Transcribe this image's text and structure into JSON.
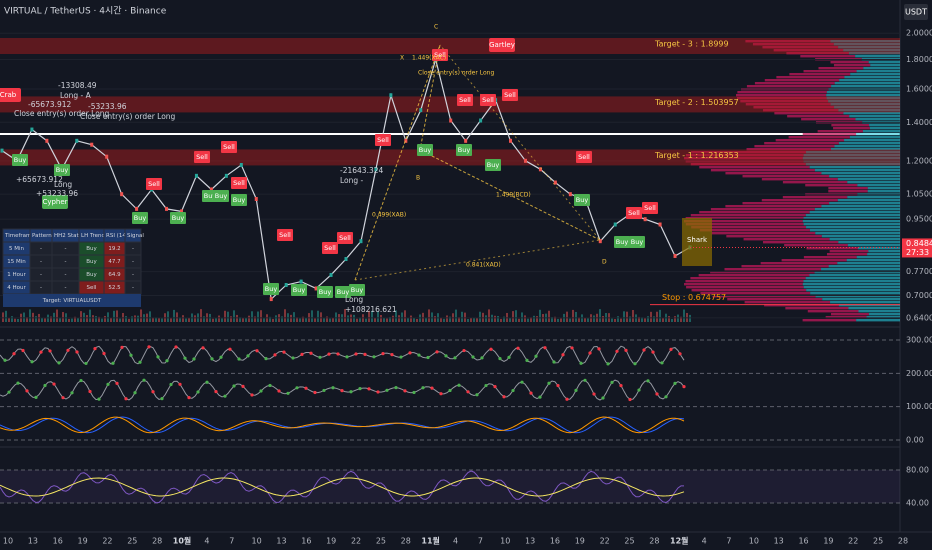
{
  "chart_data": {
    "type": "line",
    "title": "VIRTUAL / TetherUS · 4시간 · Binance",
    "currency_badge": "USDT",
    "log_scale": true,
    "color": "#d1d4dc",
    "ylim": [
      0.6,
      2.1
    ],
    "yticks": [
      {
        "value": 2.0,
        "label": "2.0000"
      },
      {
        "value": 1.8,
        "label": "1.8000"
      },
      {
        "value": 1.6,
        "label": "1.6000"
      },
      {
        "value": 1.4,
        "label": "1.4000"
      },
      {
        "value": 1.2,
        "label": "1.2000"
      },
      {
        "value": 1.05,
        "label": "1.0500"
      },
      {
        "value": 0.95,
        "label": "0.9500"
      },
      {
        "value": 0.77,
        "label": "0.7700"
      },
      {
        "value": 0.7,
        "label": "0.7000"
      },
      {
        "value": 0.64,
        "label": "0.6400"
      }
    ],
    "current_price": {
      "value": 0.8484,
      "label": "0.8484",
      "countdown": "27:33"
    },
    "values": [
      1.25,
      1.2,
      1.36,
      1.3,
      1.16,
      1.3,
      1.28,
      1.22,
      1.05,
      0.99,
      1.07,
      0.99,
      0.98,
      1.13,
      1.07,
      1.13,
      1.18,
      1.03,
      0.69,
      0.73,
      0.74,
      0.72,
      0.76,
      0.81,
      0.87,
      1.16,
      1.56,
      1.3,
      1.47,
      1.8,
      1.41,
      1.3,
      1.41,
      1.53,
      1.3,
      1.2,
      1.16,
      1.1,
      1.05,
      1.03,
      0.87,
      0.93,
      0.97,
      0.95,
      0.93,
      0.82,
      0.8484
    ],
    "x_labels": [
      "10",
      "13",
      "16",
      "19",
      "22",
      "25",
      "28",
      "10월",
      "4",
      "7",
      "10",
      "13",
      "16",
      "19",
      "22",
      "25",
      "28",
      "11월",
      "4",
      "7",
      "10",
      "13",
      "16",
      "19",
      "22",
      "25",
      "28",
      "12월",
      "4",
      "7",
      "10",
      "13",
      "16",
      "19",
      "22",
      "25",
      "28"
    ],
    "levels": [
      {
        "label": "Target - 3 : 1.8999",
        "value": 1.8999
      },
      {
        "label": "Target - 2 : 1.503957",
        "value": 1.503957
      },
      {
        "label": "Target - 1 : 1.216353",
        "value": 1.216353
      },
      {
        "label": "Stop : 0.674757",
        "value": 0.674757
      }
    ],
    "signals": [
      "Sell",
      "Sell",
      "Sell",
      "Sell",
      "Sell",
      "Sell",
      "Sell",
      "Sell",
      "Sell",
      "Sell",
      "Sell",
      "Sell",
      "Sell",
      "Sell",
      "Sell",
      "Buy",
      "Buy",
      "Buy",
      "Buy",
      "Buy",
      "Buy",
      "Buy",
      "Buy",
      "Buy",
      "Buy",
      "Buy",
      "Buy",
      "Buy",
      "Buy",
      "Buy",
      "Buy",
      "Buy",
      "Buy"
    ],
    "patterns": [
      "Crab",
      "Gartley",
      "Shark",
      "Cypher"
    ],
    "annotations": [
      "-13308.49",
      "Long - A",
      "-65673.912",
      "Close entry(s) order Long",
      "-53233.96",
      "Close entry(s) order Long",
      "+65673.912",
      "Long",
      "+53233.96",
      "-21643.324",
      "Long -",
      "Long",
      "+108216.621",
      "X",
      "1.449(XAC)",
      "C",
      "B",
      "D",
      "0.499(XAB)",
      "1.499(BCD)",
      "0.841(XAD)",
      "Close entry(s) order Long"
    ],
    "table": {
      "header": [
        "Timeframe",
        "Pattern",
        "HH2 Status",
        "LH Trend",
        "RSI (14)",
        "Signal"
      ],
      "rows": [
        [
          "5 Min",
          "-",
          "-",
          "Buy",
          "19.2",
          "-"
        ],
        [
          "15 Min",
          "-",
          "-",
          "Buy",
          "47.7",
          "-"
        ],
        [
          "1 Hour",
          "-",
          "-",
          "Buy",
          "64.9",
          "-"
        ],
        [
          "4 Hour",
          "-",
          "-",
          "Sell",
          "52.5",
          "-"
        ]
      ],
      "footer": "Target: VIRTUALUSDT"
    },
    "indicator_ticks": [
      {
        "value": 300,
        "label": "300.00"
      },
      {
        "value": 200,
        "label": "200.00"
      },
      {
        "value": 100,
        "label": "100.00"
      },
      {
        "value": 0,
        "label": "0.00"
      }
    ],
    "rsi_ticks": [
      {
        "value": 80,
        "label": "80.00"
      },
      {
        "value": 40,
        "label": "40.00"
      }
    ]
  }
}
